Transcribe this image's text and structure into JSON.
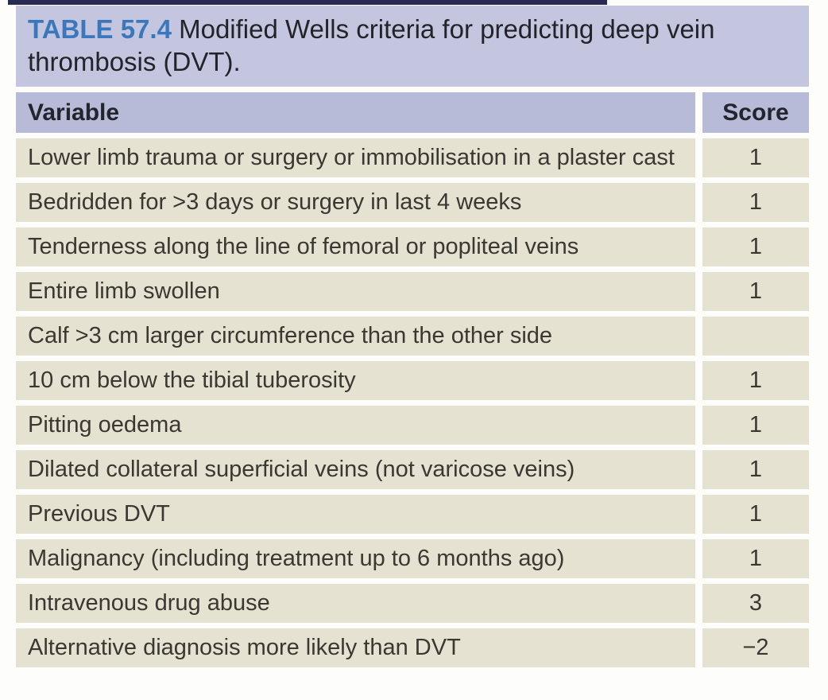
{
  "table": {
    "title": {
      "label": "TABLE 57.4",
      "rest": "Modified Wells criteria for predicting deep vein thrombosis (DVT)."
    },
    "columns": {
      "variable": "Variable",
      "score": "Score"
    },
    "rows": [
      {
        "variable": "Lower limb trauma or surgery or immobilisation in a plaster cast",
        "score": "1"
      },
      {
        "variable": "Bedridden for >3 days or surgery in last 4 weeks",
        "score": "1"
      },
      {
        "variable": "Tenderness along the line of femoral or popliteal veins",
        "score": "1"
      },
      {
        "variable": "Entire limb swollen",
        "score": "1"
      },
      {
        "variable": "Calf >3 cm larger circumference than the other side",
        "score": ""
      },
      {
        "variable": "10 cm below the tibial tuberosity",
        "score": "1"
      },
      {
        "variable": "Pitting oedema",
        "score": "1"
      },
      {
        "variable": "Dilated collateral superficial veins (not varicose veins)",
        "score": "1"
      },
      {
        "variable": "Previous DVT",
        "score": "1"
      },
      {
        "variable": "Malignancy (including treatment up to 6 months ago)",
        "score": "1"
      },
      {
        "variable": "Intravenous drug abuse",
        "score": "3"
      },
      {
        "variable": "Alternative diagnosis more likely than DVT",
        "score": "−2"
      }
    ],
    "colors": {
      "accent_blue": "#3a78bb",
      "header_bg": "#b8bbd8",
      "title_bg": "#c3c6de",
      "row_bg": "#e5e2d2",
      "top_rule": "#272b52",
      "body_text": "#3a3831",
      "header_text": "#22242e"
    }
  }
}
